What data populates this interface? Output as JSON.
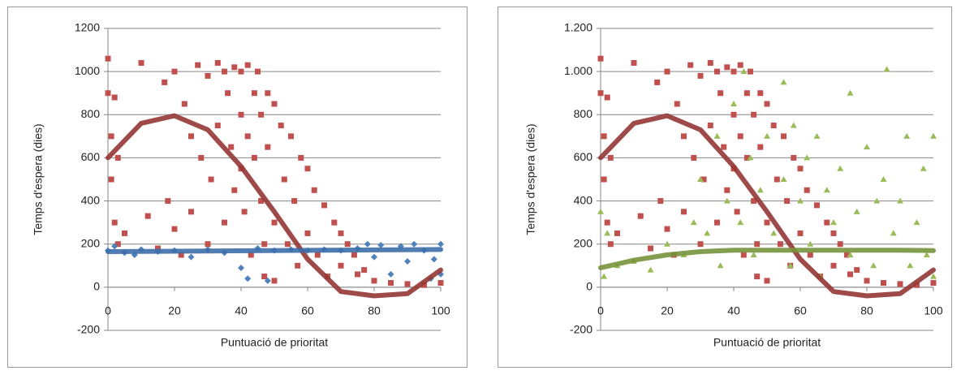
{
  "chart_data": [
    {
      "type": "scatter",
      "ylabel": "Temps d'espera (dies)",
      "xlabel": "Puntuació de prioritat",
      "xlim": [
        0,
        100
      ],
      "xticks": [
        0,
        20,
        40,
        60,
        80,
        100
      ],
      "ylim": [
        -200,
        1200
      ],
      "yticks": [
        -200,
        0,
        200,
        400,
        600,
        800,
        1000,
        1200
      ],
      "grid": true,
      "series": [
        {
          "color": "#c0504d",
          "marker": "square",
          "x": [
            0,
            0,
            1,
            1,
            2,
            2,
            3,
            3,
            5,
            10,
            12,
            15,
            17,
            18,
            20,
            20,
            22,
            23,
            25,
            25,
            27,
            28,
            30,
            30,
            31,
            33,
            33,
            35,
            35,
            36,
            37,
            38,
            38,
            40,
            40,
            40,
            41,
            42,
            42,
            43,
            44,
            44,
            45,
            46,
            46,
            47,
            47,
            48,
            48,
            50,
            50,
            50,
            52,
            53,
            54,
            55,
            56,
            57,
            58,
            60,
            60,
            62,
            63,
            65,
            66,
            68,
            70,
            70,
            72,
            74,
            75,
            77,
            80,
            85,
            90,
            95,
            100
          ],
          "values": [
            1060,
            900,
            700,
            500,
            880,
            300,
            600,
            200,
            250,
            1040,
            330,
            180,
            950,
            400,
            1000,
            270,
            150,
            850,
            700,
            350,
            1030,
            600,
            980,
            200,
            500,
            1040,
            750,
            300,
            1000,
            900,
            650,
            450,
            1020,
            1000,
            800,
            550,
            350,
            1030,
            700,
            150,
            900,
            600,
            1000,
            400,
            800,
            200,
            50,
            900,
            650,
            850,
            300,
            30,
            750,
            500,
            200,
            700,
            400,
            100,
            600,
            550,
            250,
            450,
            150,
            380,
            50,
            300,
            250,
            100,
            200,
            150,
            60,
            80,
            30,
            20,
            15,
            10,
            20
          ]
        },
        {
          "color": "#4f81bd",
          "marker": "diamond",
          "x": [
            0,
            2,
            5,
            8,
            10,
            15,
            20,
            25,
            30,
            35,
            40,
            42,
            45,
            48,
            50,
            55,
            60,
            65,
            70,
            75,
            78,
            80,
            82,
            85,
            88,
            90,
            92,
            95,
            97,
            100,
            100,
            98
          ],
          "values": [
            170,
            190,
            160,
            150,
            175,
            165,
            170,
            140,
            175,
            160,
            90,
            40,
            180,
            30,
            170,
            175,
            170,
            175,
            170,
            180,
            200,
            140,
            195,
            60,
            190,
            120,
            200,
            170,
            40,
            200,
            60,
            130
          ]
        },
        {
          "color": "#943634",
          "marker": "line",
          "x": [
            0,
            10,
            20,
            30,
            40,
            50,
            60,
            70,
            80,
            90,
            100
          ],
          "values": [
            600,
            760,
            795,
            730,
            560,
            350,
            130,
            -20,
            -40,
            -30,
            80
          ]
        },
        {
          "color": "#3c6ea8",
          "marker": "line",
          "x": [
            0,
            100
          ],
          "values": [
            165,
            175
          ]
        }
      ]
    },
    {
      "type": "scatter",
      "ylabel": "Temps d'espera (dies)",
      "xlabel": "Puntuació de prioritat",
      "xlim": [
        0,
        100
      ],
      "xticks": [
        0,
        20,
        40,
        60,
        80,
        100
      ],
      "ylim": [
        -200,
        1200
      ],
      "yticks": [
        -200,
        0,
        200,
        400,
        600,
        800,
        {
          "value": 1000,
          "label": "1.000"
        },
        {
          "value": 1200,
          "label": "1.200"
        }
      ],
      "grid": true,
      "series": [
        {
          "color": "#c0504d",
          "marker": "square",
          "x": [
            0,
            0,
            1,
            1,
            2,
            2,
            3,
            3,
            5,
            10,
            12,
            15,
            17,
            18,
            20,
            20,
            22,
            23,
            25,
            25,
            27,
            28,
            30,
            30,
            31,
            33,
            33,
            35,
            35,
            36,
            37,
            38,
            38,
            40,
            40,
            40,
            41,
            42,
            42,
            43,
            44,
            44,
            45,
            46,
            46,
            47,
            47,
            48,
            48,
            50,
            50,
            50,
            52,
            53,
            54,
            55,
            56,
            57,
            58,
            60,
            60,
            62,
            63,
            65,
            66,
            68,
            70,
            70,
            72,
            74,
            75,
            77,
            80,
            85,
            90,
            95,
            100
          ],
          "values": [
            1060,
            900,
            700,
            500,
            880,
            300,
            600,
            200,
            250,
            1040,
            330,
            180,
            950,
            400,
            1000,
            270,
            150,
            850,
            700,
            350,
            1030,
            600,
            980,
            200,
            500,
            1040,
            750,
            300,
            1000,
            900,
            650,
            450,
            1020,
            1000,
            800,
            550,
            350,
            1030,
            700,
            150,
            900,
            600,
            1000,
            400,
            800,
            200,
            50,
            900,
            650,
            850,
            300,
            30,
            750,
            500,
            200,
            700,
            400,
            100,
            600,
            550,
            250,
            450,
            150,
            380,
            50,
            300,
            250,
            100,
            200,
            150,
            60,
            80,
            30,
            20,
            15,
            10,
            20
          ]
        },
        {
          "color": "#9bbb59",
          "marker": "triangle",
          "x": [
            0,
            1,
            2,
            5,
            10,
            15,
            20,
            25,
            28,
            30,
            32,
            35,
            36,
            38,
            40,
            42,
            43,
            45,
            46,
            48,
            50,
            52,
            55,
            55,
            57,
            58,
            60,
            62,
            63,
            65,
            66,
            68,
            70,
            72,
            75,
            75,
            77,
            80,
            82,
            83,
            85,
            86,
            88,
            90,
            92,
            93,
            95,
            97,
            98,
            100,
            100
          ],
          "values": [
            350,
            50,
            250,
            100,
            120,
            80,
            200,
            150,
            300,
            500,
            250,
            700,
            100,
            400,
            850,
            300,
            1000,
            600,
            150,
            450,
            700,
            250,
            950,
            500,
            100,
            750,
            400,
            600,
            200,
            700,
            50,
            450,
            300,
            550,
            900,
            150,
            350,
            650,
            100,
            400,
            500,
            1010,
            250,
            400,
            700,
            100,
            300,
            550,
            150,
            700,
            50
          ]
        },
        {
          "color": "#943634",
          "marker": "line",
          "x": [
            0,
            10,
            20,
            30,
            40,
            50,
            60,
            70,
            80,
            90,
            100
          ],
          "values": [
            600,
            760,
            795,
            730,
            560,
            350,
            130,
            -20,
            -40,
            -30,
            80
          ]
        },
        {
          "color": "#77933c",
          "marker": "line",
          "x": [
            0,
            10,
            20,
            30,
            40,
            50,
            60,
            70,
            80,
            90,
            100
          ],
          "values": [
            90,
            125,
            150,
            165,
            172,
            172,
            172,
            172,
            172,
            172,
            170
          ]
        }
      ]
    }
  ]
}
